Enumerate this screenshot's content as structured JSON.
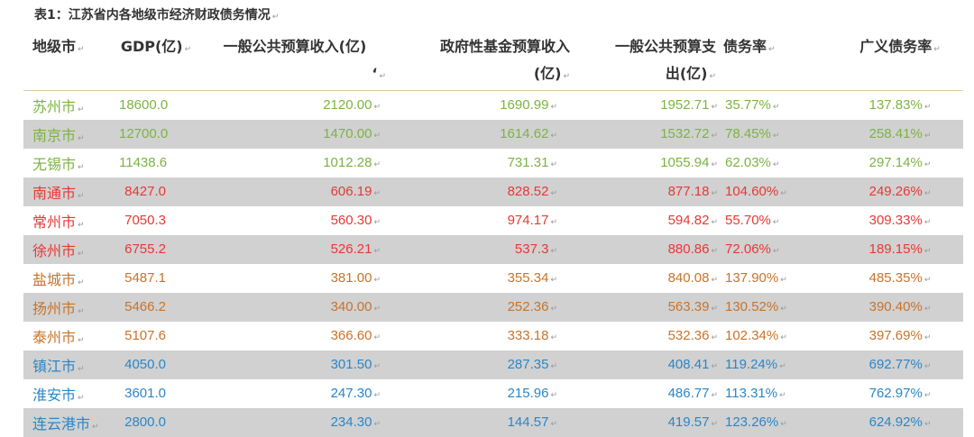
{
  "caption": "表1：江苏省内各地级市经济财政债务情况",
  "mark": "↵",
  "headers": {
    "city": "地级市",
    "gdp": "GDP(亿)",
    "general_income_l1": "一般公共预算收入(亿)",
    "general_income_l2": "‘",
    "fund_income_l1": "政府性基金预算收入",
    "fund_income_l2": "(亿)",
    "general_exp_l1": "一般公共预算支",
    "general_exp_l2": "出(亿)",
    "debt_ratio": "债务率",
    "broad_debt_ratio": "广义债务率"
  },
  "colors": {
    "green": "#7cb342",
    "red": "#e53935",
    "orange": "#c8732a",
    "blue": "#2a86c8"
  },
  "rows": [
    {
      "city": "苏州市",
      "gdp": "18600.0",
      "general_income": "2120.00",
      "fund_income": "1690.99",
      "general_exp": "1952.71",
      "debt_ratio": "35.77%",
      "broad_debt_ratio": "137.83%",
      "color": "#7cb342"
    },
    {
      "city": "南京市",
      "gdp": "12700.0",
      "general_income": "1470.00",
      "fund_income": "1614.62",
      "general_exp": "1532.72",
      "debt_ratio": "78.45%",
      "broad_debt_ratio": "258.41%",
      "color": "#7cb342"
    },
    {
      "city": "无锡市",
      "gdp": "11438.6",
      "general_income": "1012.28",
      "fund_income": "731.31",
      "general_exp": "1055.94",
      "debt_ratio": "62.03%",
      "broad_debt_ratio": "297.14%",
      "color": "#7cb342"
    },
    {
      "city": "南通市",
      "gdp": "8427.0",
      "general_income": "606.19",
      "fund_income": "828.52",
      "general_exp": "877.18",
      "debt_ratio": "104.60%",
      "broad_debt_ratio": "249.26%",
      "color": "#e53935"
    },
    {
      "city": "常州市",
      "gdp": "7050.3",
      "general_income": "560.30",
      "fund_income": "974.17",
      "general_exp": "594.82",
      "debt_ratio": "55.70%",
      "broad_debt_ratio": "309.33%",
      "color": "#e53935"
    },
    {
      "city": "徐州市",
      "gdp": "6755.2",
      "general_income": "526.21",
      "fund_income": "537.3",
      "general_exp": "880.86",
      "debt_ratio": "72.06%",
      "broad_debt_ratio": "189.15%",
      "color": "#e53935"
    },
    {
      "city": "盐城市",
      "gdp": "5487.1",
      "general_income": "381.00",
      "fund_income": "355.34",
      "general_exp": "840.08",
      "debt_ratio": "137.90%",
      "broad_debt_ratio": "485.35%",
      "color": "#c8732a"
    },
    {
      "city": "扬州市",
      "gdp": "5466.2",
      "general_income": "340.00",
      "fund_income": "252.36",
      "general_exp": "563.39",
      "debt_ratio": "130.52%",
      "broad_debt_ratio": "390.40%",
      "color": "#c8732a"
    },
    {
      "city": "泰州市",
      "gdp": "5107.6",
      "general_income": "366.60",
      "fund_income": "333.18",
      "general_exp": "532.36",
      "debt_ratio": "102.34%",
      "broad_debt_ratio": "397.69%",
      "color": "#c8732a"
    },
    {
      "city": "镇江市",
      "gdp": "4050.0",
      "general_income": "301.50",
      "fund_income": "287.35",
      "general_exp": "408.41",
      "debt_ratio": "119.24%",
      "broad_debt_ratio": "692.77%",
      "color": "#2a86c8"
    },
    {
      "city": "淮安市",
      "gdp": "3601.0",
      "general_income": "247.30",
      "fund_income": "215.96",
      "general_exp": "486.77",
      "debt_ratio": "113.31%",
      "broad_debt_ratio": "762.97%",
      "color": "#2a86c8"
    },
    {
      "city": "连云港市",
      "gdp": "2800.0",
      "general_income": "234.30",
      "fund_income": "144.57",
      "general_exp": "419.57",
      "debt_ratio": "123.26%",
      "broad_debt_ratio": "624.92%",
      "color": "#2a86c8"
    }
  ]
}
